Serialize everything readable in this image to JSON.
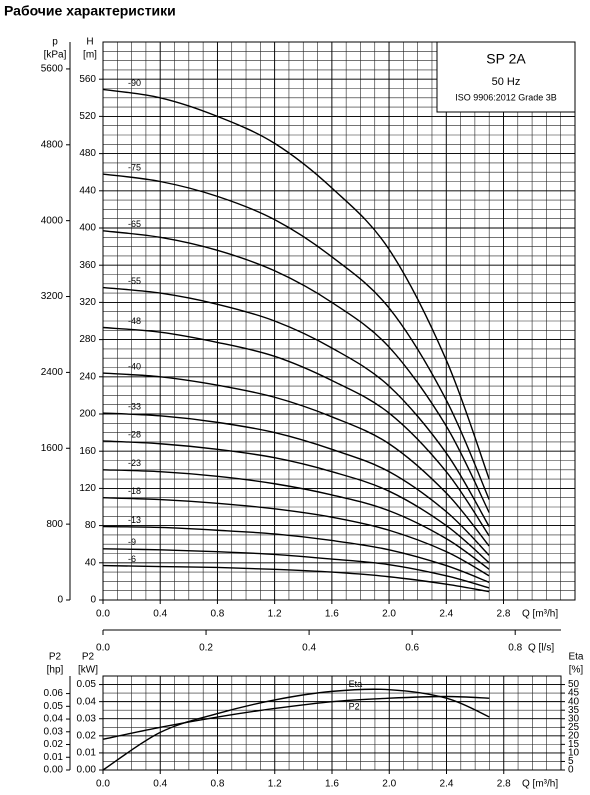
{
  "chart_data": [
    {
      "type": "line",
      "title": "Рабочие характеристики",
      "annotations": [
        "SP 2A",
        "50 Hz",
        "ISO 9906:2012 Grade 3B"
      ],
      "xlabel": "Q [m³/h]",
      "ylabel": "H",
      "yunit": "[m]",
      "y2label": "p",
      "y2unit": "[kPa]",
      "x": [
        0,
        0.4,
        0.8,
        1.2,
        1.6,
        2.0,
        2.4,
        2.7
      ],
      "xlim": [
        0,
        3.3
      ],
      "xticks": [
        {
          "value": 0,
          "label": "0.0"
        },
        {
          "value": 0.4,
          "label": "0.4"
        },
        {
          "value": 0.8,
          "label": "0.8"
        },
        {
          "value": 1.2,
          "label": "1.2"
        },
        {
          "value": 1.6,
          "label": "1.6"
        },
        {
          "value": 2.0,
          "label": "2.0"
        },
        {
          "value": 2.4,
          "label": "2.4"
        },
        {
          "value": 2.8,
          "label": "2.8"
        }
      ],
      "ylim": [
        0,
        600
      ],
      "yticks": [
        0,
        40,
        80,
        120,
        160,
        200,
        240,
        280,
        320,
        360,
        400,
        440,
        480,
        520,
        560
      ],
      "y2lim": [
        0,
        5884
      ],
      "y2ticks": [
        0,
        800,
        1600,
        2400,
        3200,
        4000,
        4800,
        5600
      ],
      "grid": true,
      "series": [
        {
          "name": "-90",
          "color": "#000000",
          "values": [
            549,
            540,
            520,
            491,
            443,
            377,
            258,
            130
          ]
        },
        {
          "name": "-75",
          "color": "#000000",
          "values": [
            458,
            450,
            434,
            409,
            369,
            314,
            215,
            108
          ]
        },
        {
          "name": "-65",
          "color": "#000000",
          "values": [
            397,
            390,
            376,
            354,
            320,
            272,
            187,
            94
          ]
        },
        {
          "name": "-55",
          "color": "#000000",
          "values": [
            336,
            330,
            318,
            300,
            271,
            230,
            158,
            79
          ]
        },
        {
          "name": "-48",
          "color": "#000000",
          "values": [
            293,
            288,
            277,
            262,
            236,
            201,
            138,
            69
          ]
        },
        {
          "name": "-40",
          "color": "#000000",
          "values": [
            244,
            240,
            231,
            218,
            197,
            168,
            115,
            58
          ]
        },
        {
          "name": "-33",
          "color": "#000000",
          "values": [
            201,
            198,
            191,
            180,
            162,
            138,
            95,
            48
          ]
        },
        {
          "name": "-28",
          "color": "#000000",
          "values": [
            171,
            168,
            162,
            153,
            138,
            117,
            80,
            40
          ]
        },
        {
          "name": "-23",
          "color": "#000000",
          "values": [
            140,
            138,
            133,
            125,
            113,
            96,
            66,
            33
          ]
        },
        {
          "name": "-18",
          "color": "#000000",
          "values": [
            110,
            108,
            104,
            98,
            89,
            75,
            52,
            26
          ]
        },
        {
          "name": "-13",
          "color": "#000000",
          "values": [
            79,
            78,
            75,
            71,
            64,
            54,
            37,
            19
          ]
        },
        {
          "name": "-9",
          "color": "#000000",
          "values": [
            55,
            54,
            52,
            49,
            44,
            38,
            26,
            13
          ]
        },
        {
          "name": "-6",
          "color": "#000000",
          "values": [
            37,
            36,
            35,
            33,
            30,
            25,
            17,
            9
          ]
        }
      ]
    },
    {
      "type": "line",
      "xlabel": "Q [m³/h]",
      "x2label": "Q [l/s]",
      "ylabel": "P2",
      "yunit": "[kW]",
      "y3label": "P2",
      "y3unit": "[hp]",
      "y2label": "Eta",
      "y2unit": "[%]",
      "x": [
        0,
        0.4,
        0.8,
        1.2,
        1.6,
        2.0,
        2.4,
        2.7
      ],
      "xlim": [
        0,
        3.2
      ],
      "xticks": [
        {
          "value": 0,
          "label": "0.0"
        },
        {
          "value": 0.4,
          "label": "0.4"
        },
        {
          "value": 0.8,
          "label": "0.8"
        },
        {
          "value": 1.2,
          "label": "1.2"
        },
        {
          "value": 1.6,
          "label": "1.6"
        },
        {
          "value": 2.0,
          "label": "2.0"
        },
        {
          "value": 2.4,
          "label": "2.4"
        },
        {
          "value": 2.8,
          "label": "2.8"
        }
      ],
      "x2lim": [
        0,
        0.8889
      ],
      "x2ticks": [
        {
          "value": 0,
          "label": "0.0"
        },
        {
          "value": 0.2,
          "label": "0.2"
        },
        {
          "value": 0.4,
          "label": "0.4"
        },
        {
          "value": 0.6,
          "label": "0.6"
        },
        {
          "value": 0.8,
          "label": "0.8"
        }
      ],
      "ylim": [
        0,
        0.055
      ],
      "yticks": [
        {
          "value": 0,
          "label": "0.00"
        },
        {
          "value": 0.01,
          "label": "0.01"
        },
        {
          "value": 0.02,
          "label": "0.02"
        },
        {
          "value": 0.03,
          "label": "0.03"
        },
        {
          "value": 0.04,
          "label": "0.04"
        },
        {
          "value": 0.05,
          "label": "0.05"
        }
      ],
      "y3lim": [
        0,
        0.0738
      ],
      "y3ticks": [
        {
          "value": 0,
          "label": "0.00"
        },
        {
          "value": 0.01,
          "label": "0.01"
        },
        {
          "value": 0.02,
          "label": "0.02"
        },
        {
          "value": 0.03,
          "label": "0.03"
        },
        {
          "value": 0.04,
          "label": "0.04"
        },
        {
          "value": 0.05,
          "label": "0.05"
        },
        {
          "value": 0.06,
          "label": "0.06"
        }
      ],
      "y2lim": [
        0,
        55
      ],
      "y2ticks": [
        0,
        5,
        10,
        15,
        20,
        25,
        30,
        35,
        40,
        45,
        50
      ],
      "grid": true,
      "series": [
        {
          "name": "P2",
          "color": "#000000",
          "values": [
            0.018,
            0.025,
            0.031,
            0.036,
            0.04,
            0.042,
            0.043,
            0.042
          ]
        },
        {
          "name": "Eta",
          "color": "#000000",
          "axis": "y2",
          "values": [
            0,
            22,
            33,
            41,
            46,
            47,
            42,
            31
          ]
        }
      ]
    }
  ]
}
